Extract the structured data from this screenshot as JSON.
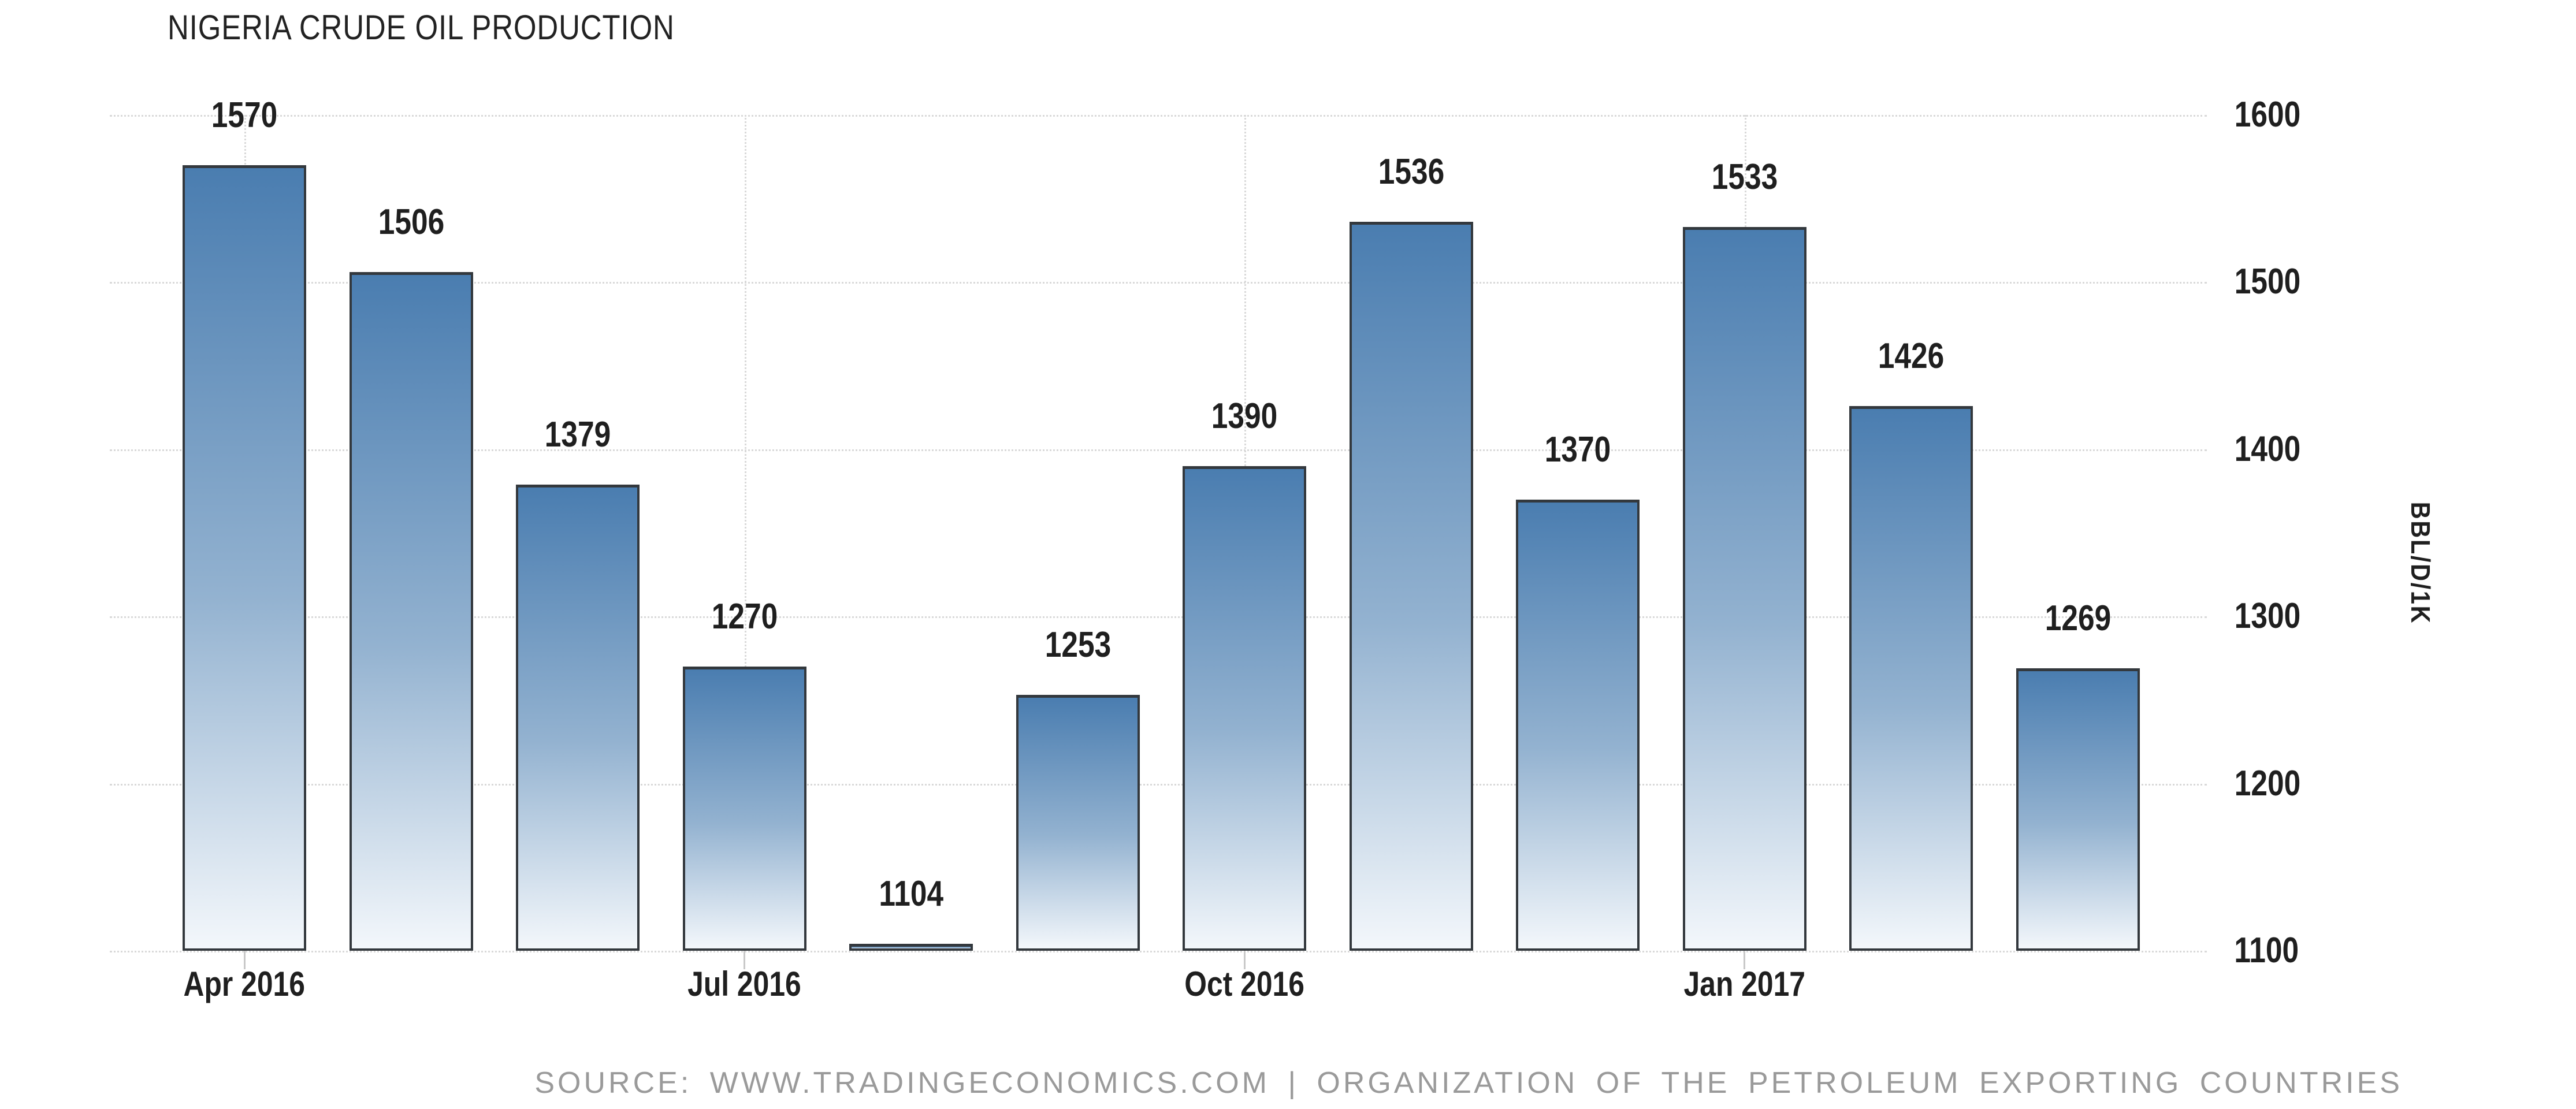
{
  "title": "NIGERIA CRUDE OIL PRODUCTION",
  "source_line": "SOURCE: WWW.TRADINGECONOMICS.COM | ORGANIZATION OF THE PETROLEUM EXPORTING COUNTRIES",
  "y_axis": {
    "unit_label": "BBL/D/1K",
    "ticks": [
      1600,
      1500,
      1400,
      1300,
      1200,
      1100
    ],
    "min": 1100,
    "max": 1600
  },
  "x_axis": {
    "ticks": [
      {
        "label": "Apr 2016",
        "bar_index": 0
      },
      {
        "label": "Jul 2016",
        "bar_index": 3
      },
      {
        "label": "Oct 2016",
        "bar_index": 6
      },
      {
        "label": "Jan 2017",
        "bar_index": 9
      }
    ]
  },
  "chart_data": {
    "type": "bar",
    "title": "NIGERIA CRUDE OIL PRODUCTION",
    "ylabel": "BBL/D/1K",
    "ylim": [
      1100,
      1600
    ],
    "y_ticks": [
      1600,
      1500,
      1400,
      1300,
      1200,
      1100
    ],
    "values": [
      1570,
      1506,
      1379,
      1270,
      1104,
      1253,
      1390,
      1536,
      1370,
      1533,
      1426,
      1269
    ],
    "value_labels_shown": true,
    "x_tick_labels": [
      "Apr 2016",
      "Jul 2016",
      "Oct 2016",
      "Jan 2017"
    ],
    "x_tick_bar_indices": [
      0,
      3,
      6,
      9
    ],
    "grid": true,
    "legend": false
  },
  "colors": {
    "background": "#ffffff",
    "bar_gradient_top": "#4a7db0",
    "bar_gradient_mid": "#93b2d0",
    "bar_gradient_bottom": "#f3f7fb",
    "bar_border": "#33383d",
    "gridline": "#d9d9d9",
    "axis_tick": "#c9c9c9",
    "text_primary": "#1f1f1f",
    "text_title": "#222222",
    "text_source": "#9a9a9a"
  }
}
